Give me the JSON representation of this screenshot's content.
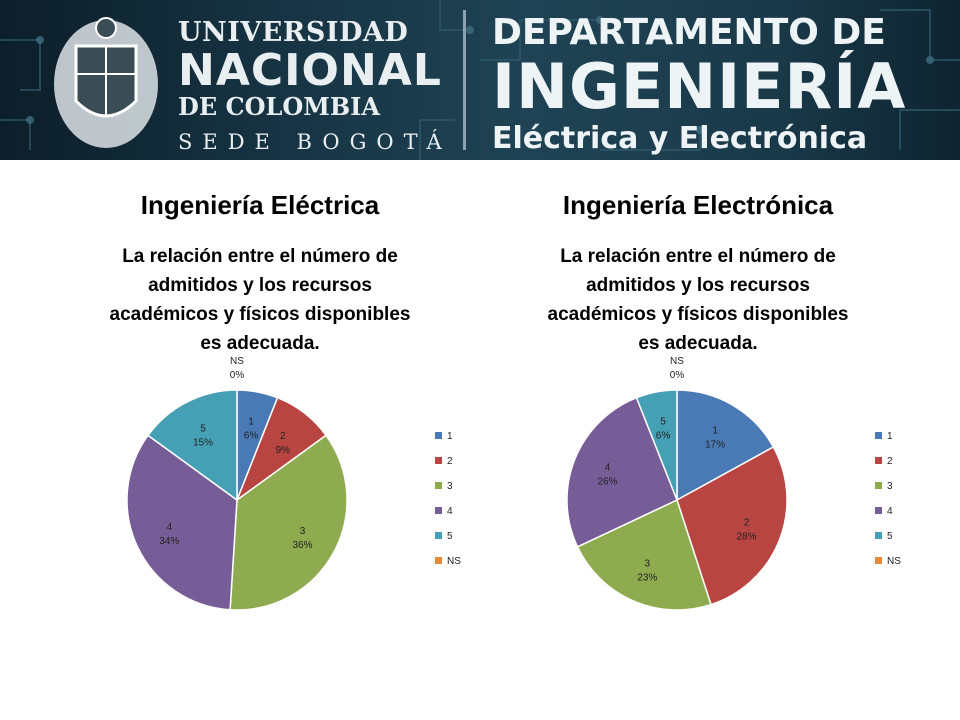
{
  "header": {
    "university": [
      "UNIVERSIDAD",
      "NACIONAL",
      "DE COLOMBIA",
      "SEDE BOGOTÁ"
    ],
    "department": [
      "DEPARTAMENTO DE",
      "INGENIERÍA",
      "Eléctrica y Electrónica"
    ],
    "colors": {
      "banner_dark": "#0c1e29",
      "banner_mid": "#1f4354",
      "text": "#eef3f5"
    }
  },
  "icons": [
    "university-crest-icon",
    "circuit-pattern"
  ],
  "chart_data": [
    {
      "type": "pie",
      "panel_title": "Ingeniería Eléctrica",
      "title": "La relación entre el número de admitidos y los recursos académicos y físicos disponibles es adecuada.",
      "title_lines": [
        "La relación entre el número de",
        "admitidos y los recursos",
        "académicos y físicos disponibles",
        "es adecuada."
      ],
      "categories": [
        "1",
        "2",
        "3",
        "4",
        "5",
        "NS"
      ],
      "values": [
        6,
        9,
        36,
        34,
        15,
        0
      ],
      "labels": [
        "6%",
        "9%",
        "36%",
        "34%",
        "15%",
        "0%"
      ],
      "colors": [
        "#4a7ab5",
        "#b84541",
        "#8fab4f",
        "#775d97",
        "#46a0b5",
        "#e58a3c"
      ],
      "legend": "right"
    },
    {
      "type": "pie",
      "panel_title": "Ingeniería Electrónica",
      "title": "La relación entre el número de admitidos y los recursos académicos y físicos disponibles es adecuada.",
      "title_lines": [
        "La relación entre el número de",
        "admitidos y los recursos",
        "académicos y físicos disponibles",
        "es adecuada."
      ],
      "categories": [
        "1",
        "2",
        "3",
        "4",
        "5",
        "NS"
      ],
      "values": [
        17,
        28,
        23,
        26,
        6,
        0
      ],
      "labels": [
        "17%",
        "28%",
        "23%",
        "26%",
        "6%",
        "0%"
      ],
      "colors": [
        "#4a7ab5",
        "#b84541",
        "#8fab4f",
        "#775d97",
        "#46a0b5",
        "#e58a3c"
      ],
      "legend": "right"
    }
  ]
}
